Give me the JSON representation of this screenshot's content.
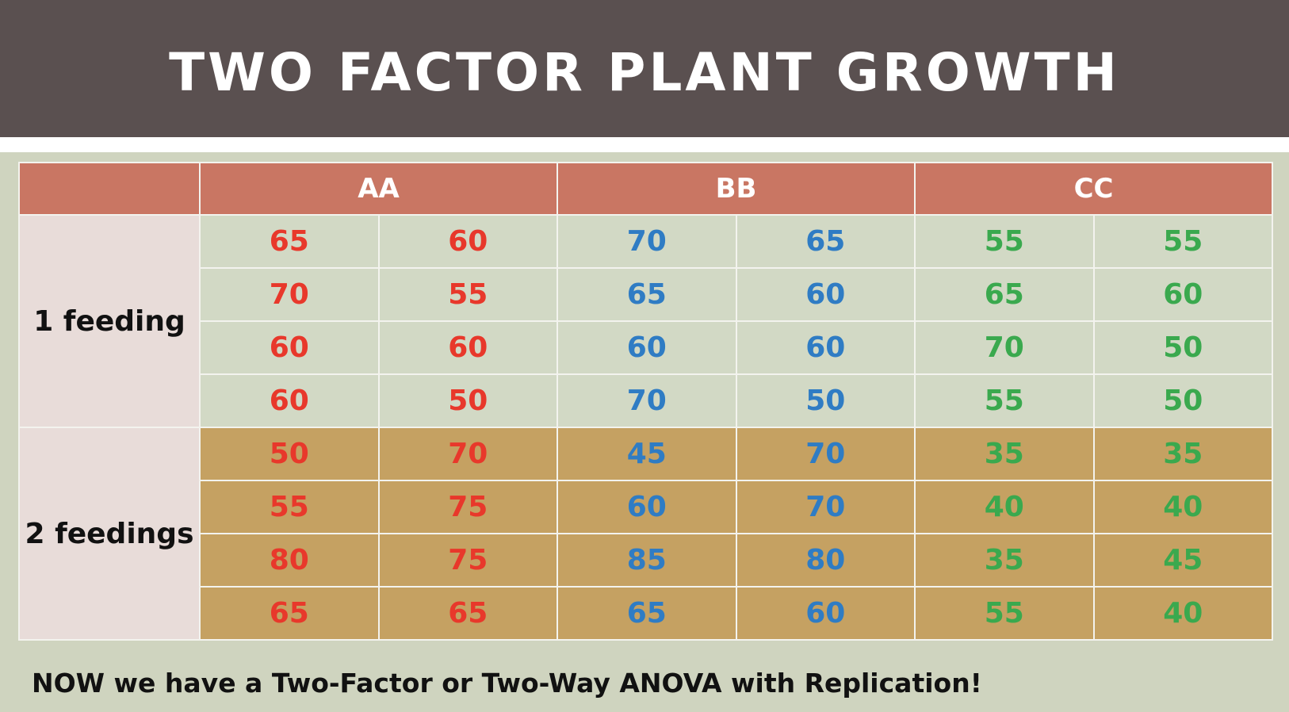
{
  "title": "TWO FACTOR PLANT GROWTH",
  "table": {
    "header_corner": "",
    "groups": [
      "AA",
      "BB",
      "CC"
    ],
    "group_colors": [
      "#e8382b",
      "#2f7cc4",
      "#3aa94e"
    ],
    "factor_levels": [
      {
        "label": "1 feeding",
        "rows": [
          [
            65,
            60,
            70,
            65,
            55,
            55
          ],
          [
            70,
            55,
            65,
            60,
            65,
            60
          ],
          [
            60,
            60,
            60,
            60,
            70,
            50
          ],
          [
            60,
            50,
            70,
            50,
            55,
            50
          ]
        ]
      },
      {
        "label": "2 feedings",
        "rows": [
          [
            50,
            70,
            45,
            70,
            35,
            35
          ],
          [
            55,
            75,
            60,
            70,
            40,
            40
          ],
          [
            80,
            75,
            85,
            80,
            35,
            45
          ],
          [
            65,
            65,
            65,
            60,
            55,
            40
          ]
        ]
      }
    ]
  },
  "footer": "NOW we have a Two-Factor or Two-Way ANOVA with Replication!",
  "colors": {
    "title_bar": "#5a5050",
    "header_cells": "#c97663",
    "label_cells": "#e8dcd9",
    "band_1": "#d2d9c5",
    "band_2": "#c5a162",
    "background": "#cfd4bf"
  }
}
